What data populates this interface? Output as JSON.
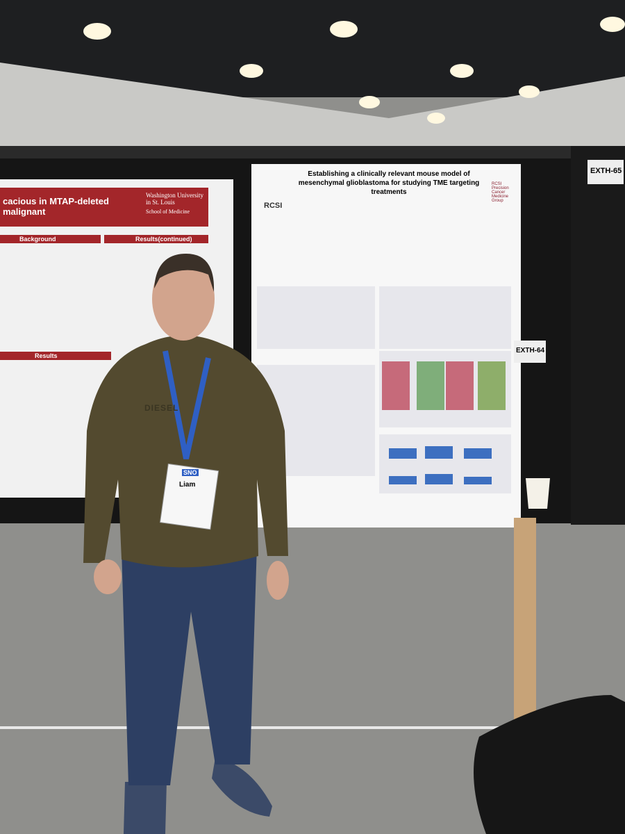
{
  "signs": {
    "board_left": "EXTH-64",
    "board_right": "EXTH-65"
  },
  "poster_left": {
    "title": "cacious in MTAP-deleted malignant",
    "institution": "Washington University in St. Louis",
    "school": "School of Medicine",
    "sections": [
      "Background",
      "Results(continued)",
      "Results"
    ]
  },
  "poster_right": {
    "title": "Establishing a clinically relevant mouse model of mesenchymal glioblastoma for studying TME targeting treatments",
    "logo": "RCSI",
    "partner": "RCSI Precision Cancer Medicine Group"
  },
  "badge": {
    "org": "SNO",
    "name": "Liam"
  },
  "hoodie": "DIESEL"
}
